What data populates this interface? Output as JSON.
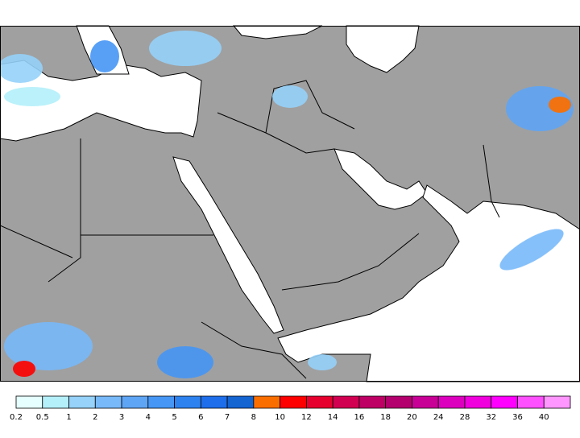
{
  "colorbar": {
    "labels": [
      0.2,
      0.5,
      1,
      2,
      3,
      4,
      5,
      6,
      7,
      8,
      10,
      12,
      14,
      16,
      18,
      20,
      24,
      28,
      32,
      36,
      40
    ],
    "colors": [
      "#e6ffff",
      "#b4f0fa",
      "#96d2fa",
      "#78b9fa",
      "#5fa5f5",
      "#4696f5",
      "#2d82f0",
      "#1e6eeb",
      "#1464d2",
      "#fa6e00",
      "#ff0000",
      "#e6002d",
      "#d20050",
      "#be0064",
      "#b4006e",
      "#c80096",
      "#dc00be",
      "#f000dc",
      "#ff00ff",
      "#ff50ff",
      "#ff96ff"
    ]
  }
}
